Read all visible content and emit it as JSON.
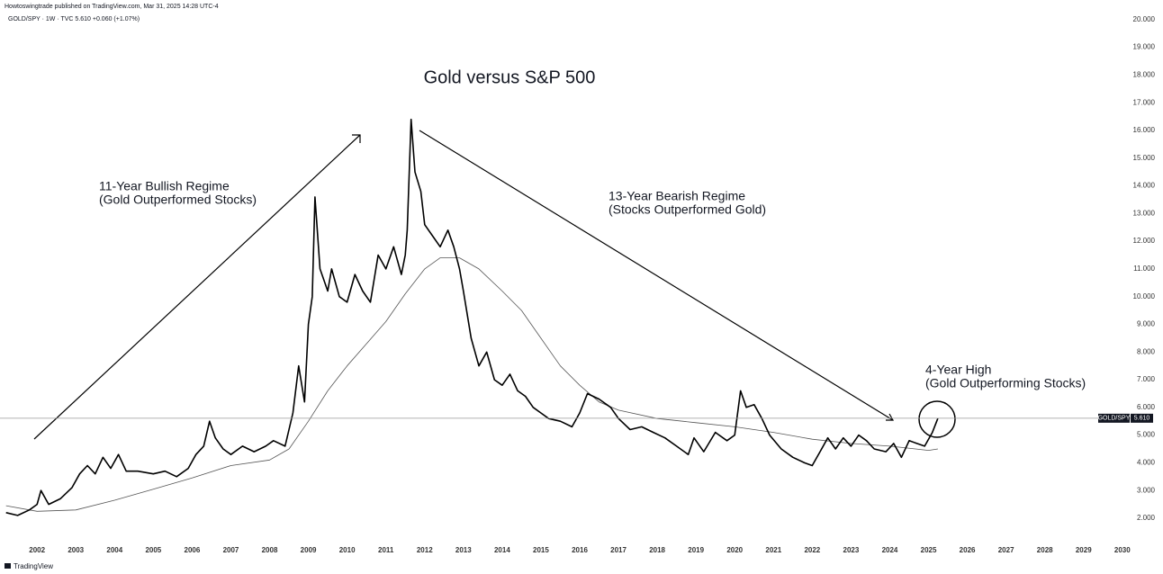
{
  "header": {
    "publisher": "Howtoswingtrade published on TradingView.com, Mar 31, 2025 14:28 UTC-4",
    "symbol_line": "GOLD/SPY · 1W · TVC  5.610  +0.060 (+1.07%)"
  },
  "footer": {
    "brand": "TradingView"
  },
  "chart_data": {
    "type": "line",
    "title": "Gold versus S&P 500",
    "annotations": [
      "11-Year Bullish Regime",
      "(Gold Outperformed Stocks)",
      "13-Year Bearish Regime",
      "(Stocks Outperformed Gold)",
      "4-Year High",
      "(Gold Outperforming Stocks)"
    ],
    "xlim": [
      2001.16,
      2030.19
    ],
    "xticks": [
      2002,
      2003,
      2004,
      2005,
      2006,
      2007,
      2008,
      2009,
      2010,
      2011,
      2012,
      2013,
      2014,
      2015,
      2016,
      2017,
      2018,
      2019,
      2020,
      2021,
      2022,
      2023,
      2024,
      2025,
      2026,
      2027,
      2028,
      2029,
      2030
    ],
    "ylim": [
      1.22,
      20.32
    ],
    "yticks": [
      {
        "value": 2,
        "label": "2.000"
      },
      {
        "value": 3,
        "label": "3.000"
      },
      {
        "value": 4,
        "label": "4.000"
      },
      {
        "value": 5,
        "label": "5.000"
      },
      {
        "value": 6,
        "label": "6.000"
      },
      {
        "value": 7,
        "label": "7.000"
      },
      {
        "value": 8,
        "label": "8.000"
      },
      {
        "value": 9,
        "label": "9.000"
      },
      {
        "value": 10,
        "label": "10.000"
      },
      {
        "value": 11,
        "label": "11.000"
      },
      {
        "value": 12,
        "label": "12.000"
      },
      {
        "value": 13,
        "label": "13.000"
      },
      {
        "value": 14,
        "label": "14.000"
      },
      {
        "value": 15,
        "label": "15.000"
      },
      {
        "value": 16,
        "label": "16.000"
      },
      {
        "value": 17,
        "label": "17.000"
      },
      {
        "value": 18,
        "label": "18.000"
      },
      {
        "value": 19,
        "label": "19.000"
      },
      {
        "value": 20,
        "label": "20.000"
      }
    ],
    "price_tag": {
      "label": "GOLD/SPY",
      "value": 5.61,
      "value_label": "5.610"
    },
    "series": [
      {
        "name": "GOLD/SPY",
        "color": "#000000",
        "x": [
          2001.2,
          2001.5,
          2001.8,
          2002.0,
          2002.1,
          2002.3,
          2002.6,
          2002.9,
          2003.1,
          2003.3,
          2003.5,
          2003.7,
          2003.9,
          2004.1,
          2004.3,
          2004.6,
          2005.0,
          2005.3,
          2005.6,
          2005.9,
          2006.1,
          2006.3,
          2006.45,
          2006.6,
          2006.8,
          2007.0,
          2007.3,
          2007.6,
          2007.9,
          2008.1,
          2008.4,
          2008.6,
          2008.75,
          2008.9,
          2009.0,
          2009.1,
          2009.17,
          2009.3,
          2009.5,
          2009.6,
          2009.8,
          2010.0,
          2010.2,
          2010.4,
          2010.6,
          2010.8,
          2011.0,
          2011.2,
          2011.4,
          2011.5,
          2011.55,
          2011.65,
          2011.75,
          2011.9,
          2012.0,
          2012.2,
          2012.4,
          2012.6,
          2012.75,
          2012.9,
          2013.0,
          2013.2,
          2013.4,
          2013.6,
          2013.8,
          2014.0,
          2014.2,
          2014.4,
          2014.6,
          2014.8,
          2015.0,
          2015.2,
          2015.5,
          2015.8,
          2016.0,
          2016.2,
          2016.5,
          2016.8,
          2017.0,
          2017.3,
          2017.6,
          2017.9,
          2018.2,
          2018.5,
          2018.8,
          2018.95,
          2019.2,
          2019.5,
          2019.8,
          2020.0,
          2020.15,
          2020.3,
          2020.5,
          2020.7,
          2020.9,
          2021.2,
          2021.5,
          2021.8,
          2022.0,
          2022.2,
          2022.4,
          2022.6,
          2022.8,
          2023.0,
          2023.2,
          2023.4,
          2023.6,
          2023.9,
          2024.1,
          2024.3,
          2024.5,
          2024.7,
          2024.9,
          2025.1,
          2025.24
        ],
        "values": [
          2.2,
          2.1,
          2.3,
          2.5,
          3.0,
          2.5,
          2.7,
          3.1,
          3.6,
          3.9,
          3.6,
          4.2,
          3.8,
          4.3,
          3.7,
          3.7,
          3.6,
          3.7,
          3.5,
          3.8,
          4.3,
          4.6,
          5.5,
          4.9,
          4.5,
          4.3,
          4.6,
          4.4,
          4.6,
          4.8,
          4.6,
          5.8,
          7.5,
          6.2,
          9.0,
          10.0,
          13.6,
          11.0,
          10.2,
          11.0,
          10.0,
          9.8,
          10.8,
          10.2,
          9.8,
          11.5,
          11.0,
          11.8,
          10.8,
          11.5,
          12.4,
          16.4,
          14.5,
          13.8,
          12.6,
          12.2,
          11.8,
          12.4,
          11.8,
          11.0,
          10.2,
          8.5,
          7.5,
          8.0,
          7.0,
          6.8,
          7.2,
          6.6,
          6.4,
          6.0,
          5.8,
          5.6,
          5.5,
          5.3,
          5.8,
          6.5,
          6.3,
          6.0,
          5.6,
          5.2,
          5.3,
          5.1,
          4.9,
          4.6,
          4.3,
          4.9,
          4.4,
          5.1,
          4.8,
          5.0,
          6.6,
          6.0,
          6.1,
          5.6,
          5.0,
          4.5,
          4.2,
          4.0,
          3.9,
          4.4,
          4.9,
          4.5,
          4.9,
          4.6,
          5.0,
          4.8,
          4.5,
          4.4,
          4.7,
          4.2,
          4.8,
          4.7,
          4.6,
          5.1,
          5.61
        ]
      },
      {
        "color": "#555555",
        "x": [
          2001.2,
          2002,
          2003,
          2004,
          2005,
          2006,
          2007,
          2008,
          2008.5,
          2009,
          2009.5,
          2010,
          2010.5,
          2011,
          2011.5,
          2012,
          2012.4,
          2012.9,
          2013.4,
          2014,
          2014.5,
          2015,
          2015.5,
          2016,
          2016.5,
          2017,
          2018,
          2019,
          2020,
          2021,
          2022,
          2023,
          2024,
          2025,
          2025.24
        ],
        "values": [
          2.45,
          2.25,
          2.3,
          2.65,
          3.05,
          3.45,
          3.9,
          4.1,
          4.5,
          5.5,
          6.6,
          7.5,
          8.3,
          9.1,
          10.1,
          11.0,
          11.4,
          11.4,
          11.0,
          10.2,
          9.5,
          8.5,
          7.5,
          6.8,
          6.2,
          5.9,
          5.6,
          5.45,
          5.3,
          5.1,
          4.85,
          4.7,
          4.6,
          4.45,
          4.5
        ]
      }
    ]
  }
}
